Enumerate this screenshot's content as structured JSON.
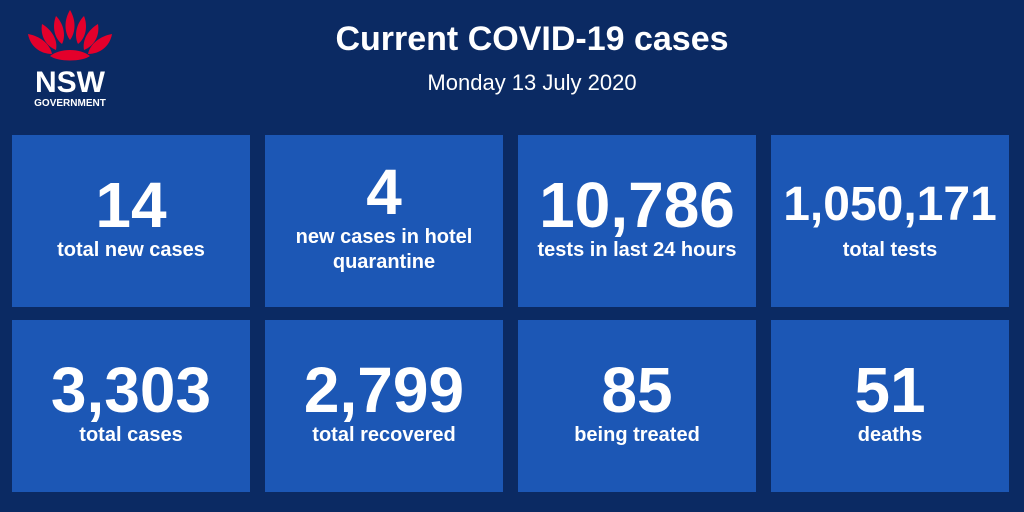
{
  "header": {
    "logo": {
      "name": "NSW",
      "subname": "GOVERNMENT"
    },
    "title": "Current COVID-19 cases",
    "subtitle": "Monday 13 July 2020"
  },
  "tiles": [
    {
      "value": "14",
      "label": "total new cases"
    },
    {
      "value": "4",
      "label": "new cases in hotel quarantine"
    },
    {
      "value": "10,786",
      "label": "tests in last 24 hours"
    },
    {
      "value": "1,050,171",
      "label": "total tests"
    },
    {
      "value": "3,303",
      "label": "total cases"
    },
    {
      "value": "2,799",
      "label": "total recovered"
    },
    {
      "value": "85",
      "label": "being treated"
    },
    {
      "value": "51",
      "label": "deaths"
    }
  ]
}
